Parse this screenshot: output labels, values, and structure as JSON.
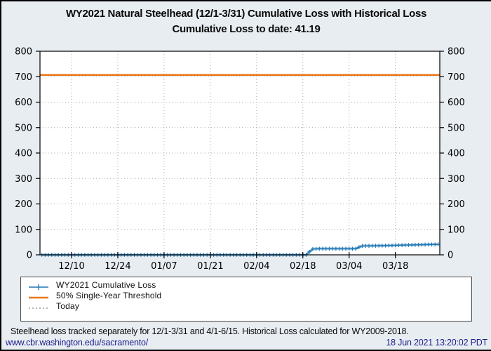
{
  "title": {
    "line1": "WY2021 Natural Steelhead (12/1-3/31) Cumulative Loss with Historical Loss",
    "line2": "Cumulative Loss to date: 41.19"
  },
  "chart_data": {
    "type": "line",
    "title": "WY2021 Natural Steelhead (12/1-3/31) Cumulative Loss with Historical Loss",
    "subtitle": "Cumulative Loss to date: 41.19",
    "cumulative_loss_to_date": 41.19,
    "x": {
      "domain_days": [
        0,
        121
      ],
      "start_date": "12/01",
      "end_date": "03/31",
      "tick_days": [
        9,
        23,
        37,
        51,
        65,
        79,
        93,
        107
      ],
      "tick_labels": [
        "12/10",
        "12/24",
        "01/07",
        "01/21",
        "02/04",
        "02/18",
        "03/04",
        "03/18"
      ]
    },
    "y": {
      "lim": [
        0,
        800
      ],
      "ticks": [
        0,
        100,
        200,
        300,
        400,
        500,
        600,
        700,
        800
      ],
      "mirrored_right_axis": true
    },
    "grid": {
      "style": "dotted",
      "color": "#ababab",
      "on": true
    },
    "legend_position": "bottom-left boxed",
    "series": [
      {
        "name": "WY2021 Cumulative Loss",
        "type": "step-line",
        "marker": "plus",
        "color": "#1f77b4",
        "points_day_value": [
          [
            0,
            0
          ],
          [
            80,
            0
          ],
          [
            81,
            12
          ],
          [
            82,
            23
          ],
          [
            84,
            24
          ],
          [
            95,
            24
          ],
          [
            96,
            30
          ],
          [
            97,
            35
          ],
          [
            102,
            36
          ],
          [
            106,
            37
          ],
          [
            110,
            38.5
          ],
          [
            114,
            39.5
          ],
          [
            117,
            40.5
          ],
          [
            120,
            41.19
          ]
        ],
        "final_value": 41.19
      },
      {
        "name": "50% Single-Year Threshold",
        "type": "hline",
        "color": "#e8761a",
        "value": 707
      },
      {
        "name": "Today",
        "type": "vline",
        "style": "dotted",
        "color": "#888888",
        "value": null
      }
    ]
  },
  "footer": {
    "note": "Steelhead loss tracked separately for 12/1-3/31 and 4/1-6/15. Historical Loss calculated for WY2009-2018.",
    "url": "www.cbr.washington.edu/sacramento/",
    "timestamp": "18 Jun 2021 13:20:02 PDT",
    "link_color": "#1c1c8a"
  },
  "palette": {
    "page_background": "#e8edf2",
    "plot_background": "#ffffff",
    "axis_color": "#000000"
  }
}
